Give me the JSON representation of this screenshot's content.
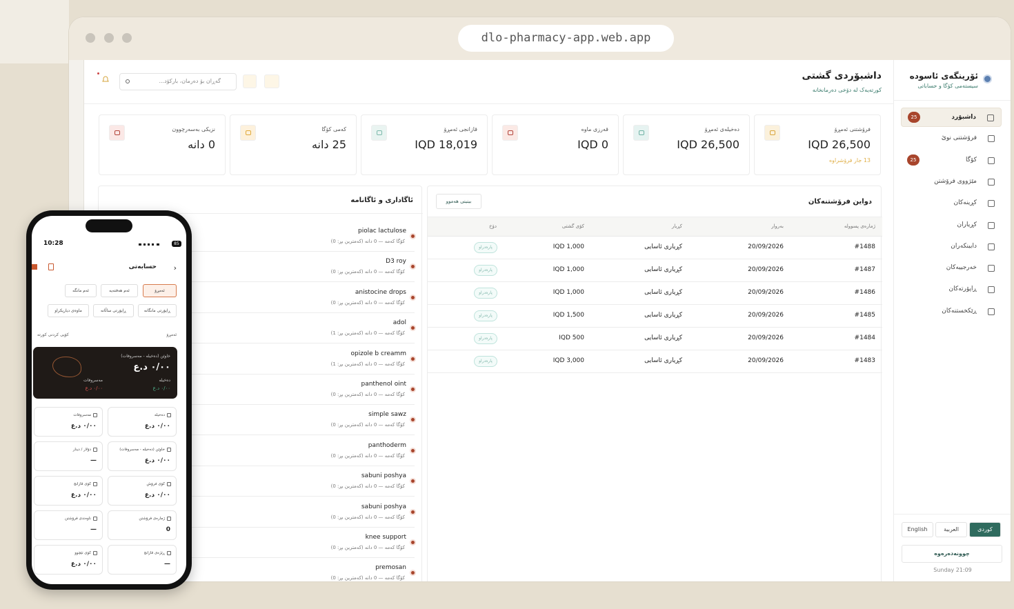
{
  "browser": {
    "url": "dlo-pharmacy-app.web.app"
  },
  "sidebar": {
    "brand": {
      "title": "ئۆرینگەی ئاسودە",
      "subtitle": "سیستەمی کۆگا و حساباتی"
    },
    "nav": [
      {
        "label": "داشبۆرد",
        "badge": 25
      },
      {
        "label": "فرۆشتنی نوێ"
      },
      {
        "label": "کۆگا",
        "badge": 25
      },
      {
        "label": "مێژووی فرۆشتن"
      },
      {
        "label": "کڕینەکان"
      },
      {
        "label": "کڕیاران"
      },
      {
        "label": "دابینکەران"
      },
      {
        "label": "خەرجییەکان"
      },
      {
        "label": "ڕاپۆرتەکان"
      },
      {
        "label": "ڕێکخستنەکان"
      }
    ],
    "languages": [
      "کوردی",
      "العربية",
      "English"
    ],
    "logout": "چوونەدەرەوە",
    "clock": "Sunday 21:09"
  },
  "header": {
    "title": "داشبۆردی گشتی",
    "subtitle": "کورتەیەک لە دۆخی دەرمانخانە",
    "search_placeholder": "گەڕان بۆ دەرمان، بارکۆد..."
  },
  "stats": [
    {
      "label": "فرۆشتنی ئەمڕۆ",
      "value": "IQD 26,500",
      "note": "13 جار فرۆشراوە"
    },
    {
      "label": "دەخیلەی ئەمڕۆ",
      "value": "IQD 26,500"
    },
    {
      "label": "قەرزی ماوە",
      "value": "IQD 0"
    },
    {
      "label": "قازانجی ئەمڕۆ",
      "value": "IQD 18,019"
    },
    {
      "label": "کەمی کۆگا",
      "value": "25 دانە"
    },
    {
      "label": "نزیکی بەسەرچوون",
      "value": "0 دانە"
    }
  ],
  "sales": {
    "title": "دواین فرۆشتنەکان",
    "view_all": "بینینی هەموو",
    "columns": [
      "ژمارەی پسوولە",
      "بەروار",
      "کڕیار",
      "کۆی گشتی",
      "دۆخ"
    ],
    "rows": [
      [
        "#1488",
        "20/09/2026",
        "کڕیاری ئاسایی",
        "IQD 1,000",
        "پارەدراو"
      ],
      [
        "#1487",
        "20/09/2026",
        "کڕیاری ئاسایی",
        "IQD 1,000",
        "پارەدراو"
      ],
      [
        "#1486",
        "20/09/2026",
        "کڕیاری ئاسایی",
        "IQD 1,000",
        "پارەدراو"
      ],
      [
        "#1485",
        "20/09/2026",
        "کڕیاری ئاسایی",
        "IQD 1,500",
        "پارەدراو"
      ],
      [
        "#1484",
        "20/09/2026",
        "کڕیاری ئاسایی",
        "IQD 500",
        "پارەدراو"
      ],
      [
        "#1483",
        "20/09/2026",
        "کڕیاری ئاسایی",
        "IQD 3,000",
        "پارەدراو"
      ]
    ]
  },
  "alerts": {
    "title": "ئاگاداری و ئاگانامە",
    "items": [
      {
        "name": "piolac lactulose",
        "detail": "کۆگا کەمە — 0 دانە (کەمترین بڕ: 0)"
      },
      {
        "name": "D3 roy",
        "detail": "کۆگا کەمە — 0 دانە (کەمترین بڕ: 0)"
      },
      {
        "name": "anistocine drops",
        "detail": "کۆگا کەمە — 0 دانە (کەمترین بڕ: 0)"
      },
      {
        "name": "adol",
        "detail": "کۆگا کەمە — 0 دانە (کەمترین بڕ: 1)"
      },
      {
        "name": "opizole b creamm",
        "detail": "کۆگا کەمە — 0 دانە (کەمترین بڕ: 1)"
      },
      {
        "name": "panthenol oint",
        "detail": "کۆگا کەمە — 0 دانە (کەمترین بڕ: 0)"
      },
      {
        "name": "simple sawz",
        "detail": "کۆگا کەمە — 0 دانە (کەمترین بڕ: 0)"
      },
      {
        "name": "panthoderm",
        "detail": "کۆگا کەمە — 0 دانە (کەمترین بڕ: 0)"
      },
      {
        "name": "sabuni poshya",
        "detail": "کۆگا کەمە — 0 دانە (کەمترین بڕ: 0)"
      },
      {
        "name": "sabuni poshya",
        "detail": "کۆگا کەمە — 0 دانە (کەمترین بڕ: 0)"
      },
      {
        "name": "knee support",
        "detail": "کۆگا کەمە — 0 دانە (کەمترین بڕ: 0)"
      },
      {
        "name": "premosan",
        "detail": "کۆگا کەمە — 0 دانە (کەمترین بڕ: 0)"
      }
    ]
  },
  "phone": {
    "time": "10:28",
    "battery": "85",
    "title": "حسابەتی",
    "filters": [
      "ئەمڕۆ",
      "ئەم هەفتەیە",
      "ئەم مانگە",
      "ڕاپۆرتی مانگانە",
      "ڕاپۆرتی ساڵانە",
      "ماوەی دیاریکراو"
    ],
    "period_label": "ئەمڕۆ",
    "copy": "کۆپی کردنی کورتە",
    "hero": {
      "label": "خاوێن (دەخیلە - مەسروفات)",
      "value": "٠/٠٠ د.ع",
      "income_label": "دەخیلە",
      "income_value": "٠/٠٠ د.ع",
      "expense_label": "مەسروفات",
      "expense_value": "٠/٠٠ د.ع"
    },
    "cards": [
      {
        "label": "دەخیلە",
        "value": "٠/٠٠ د.ع"
      },
      {
        "label": "مەسروفات",
        "value": "٠/٠٠ د.ع"
      },
      {
        "label": "خاوێن (دەخیلە - مەسروفات)",
        "value": "٠/٠٠ د.ع"
      },
      {
        "label": "دۆلار / دینار",
        "value": "—"
      },
      {
        "label": "کۆی فرۆش",
        "value": "٠/٠٠ د.ع"
      },
      {
        "label": "کۆی قازانج",
        "value": "٠/٠٠ د.ع"
      },
      {
        "label": "ژمارەی فرۆشتن",
        "value": "0"
      },
      {
        "label": "ناوەندی فرۆشتن",
        "value": "—"
      },
      {
        "label": "ڕێژەی قازانج",
        "value": "—"
      },
      {
        "label": "کۆی تێچوو",
        "value": "٠/٠٠ د.ع"
      }
    ]
  }
}
